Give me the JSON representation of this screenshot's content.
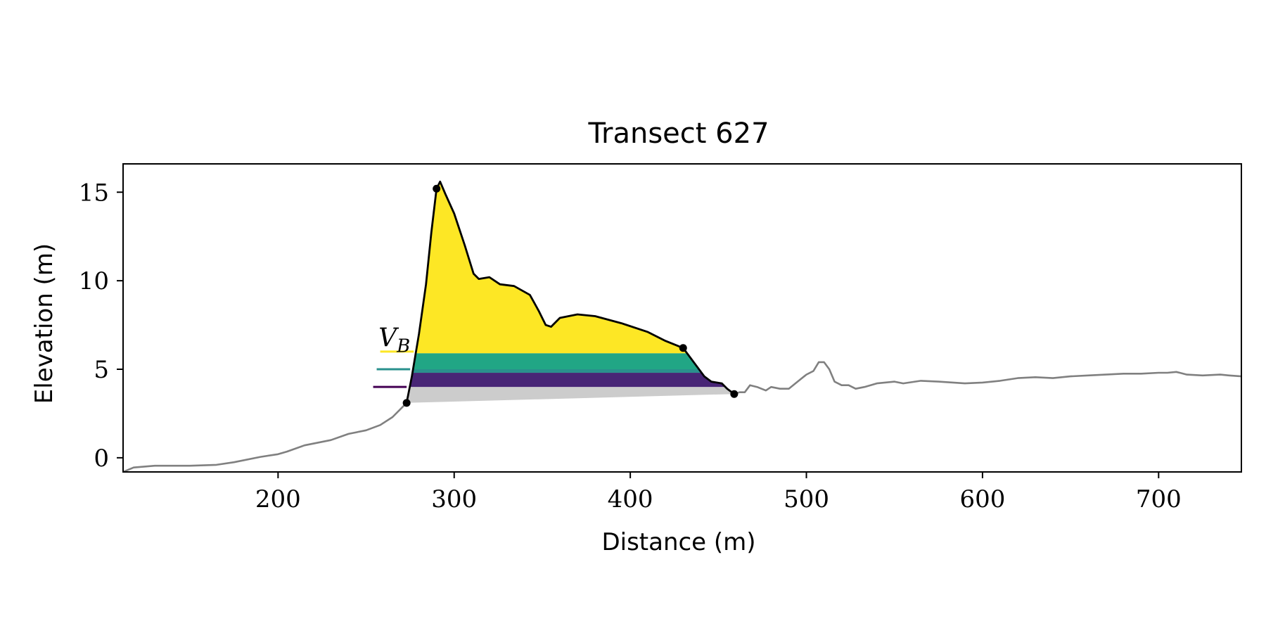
{
  "chart_data": {
    "type": "area",
    "title": "Transect 627",
    "xlabel": "Distance (m)",
    "ylabel": "Elevation (m)",
    "xlim": [
      112,
      747
    ],
    "ylim": [
      -0.8,
      16.6
    ],
    "xticks": [
      200,
      300,
      400,
      500,
      600,
      700
    ],
    "yticks": [
      0,
      5,
      10,
      15
    ],
    "xtick_labels": [
      "200",
      "300",
      "400",
      "500",
      "600",
      "700"
    ],
    "ytick_labels": [
      "0",
      "5",
      "10",
      "15"
    ],
    "grid": false,
    "annotation": {
      "text": "V",
      "subscript": "B",
      "x": 257,
      "y": 6.3
    },
    "colors": {
      "profile": "#808080",
      "dune_outline": "#000000",
      "layer_top": "#fde725",
      "layer_2": "#21a685",
      "layer_3": "#2a908d",
      "layer_4": "#482576",
      "base": "#cccccc"
    },
    "profile": [
      [
        112,
        -0.8
      ],
      [
        118,
        -0.55
      ],
      [
        130,
        -0.45
      ],
      [
        150,
        -0.45
      ],
      [
        165,
        -0.4
      ],
      [
        175,
        -0.25
      ],
      [
        190,
        0.05
      ],
      [
        200,
        0.2
      ],
      [
        205,
        0.35
      ],
      [
        215,
        0.7
      ],
      [
        230,
        1.0
      ],
      [
        240,
        1.35
      ],
      [
        250,
        1.55
      ],
      [
        258,
        1.85
      ],
      [
        265,
        2.3
      ],
      [
        270,
        2.8
      ],
      [
        273,
        3.1
      ]
    ],
    "dune_outline": [
      [
        273,
        3.1
      ],
      [
        276,
        4.6
      ],
      [
        280,
        7.0
      ],
      [
        284,
        9.8
      ],
      [
        287,
        12.7
      ],
      [
        290,
        15.2
      ],
      [
        292,
        15.6
      ],
      [
        295,
        14.9
      ],
      [
        300,
        13.8
      ],
      [
        306,
        12.0
      ],
      [
        311,
        10.4
      ],
      [
        314,
        10.1
      ],
      [
        320,
        10.2
      ],
      [
        326,
        9.8
      ],
      [
        334,
        9.7
      ],
      [
        343,
        9.2
      ],
      [
        348,
        8.3
      ],
      [
        352,
        7.5
      ],
      [
        355,
        7.4
      ],
      [
        360,
        7.9
      ],
      [
        370,
        8.1
      ],
      [
        380,
        8.0
      ],
      [
        395,
        7.6
      ],
      [
        410,
        7.1
      ],
      [
        420,
        6.6
      ],
      [
        430,
        6.2
      ],
      [
        436,
        5.4
      ],
      [
        442,
        4.6
      ],
      [
        446,
        4.3
      ],
      [
        452,
        4.2
      ],
      [
        455,
        3.9
      ],
      [
        459,
        3.6
      ]
    ],
    "profile_after": [
      [
        459,
        3.6
      ],
      [
        462,
        3.7
      ],
      [
        465,
        3.7
      ],
      [
        468,
        4.1
      ],
      [
        472,
        4.0
      ],
      [
        477,
        3.8
      ],
      [
        480,
        4.0
      ],
      [
        485,
        3.9
      ],
      [
        490,
        3.9
      ],
      [
        495,
        4.3
      ],
      [
        500,
        4.7
      ],
      [
        504,
        4.9
      ],
      [
        507,
        5.4
      ],
      [
        510,
        5.4
      ],
      [
        513,
        5.0
      ],
      [
        516,
        4.3
      ],
      [
        520,
        4.1
      ],
      [
        524,
        4.1
      ],
      [
        528,
        3.9
      ],
      [
        533,
        4.0
      ],
      [
        540,
        4.2
      ],
      [
        550,
        4.3
      ],
      [
        555,
        4.2
      ],
      [
        565,
        4.35
      ],
      [
        575,
        4.3
      ],
      [
        590,
        4.2
      ],
      [
        600,
        4.25
      ],
      [
        610,
        4.35
      ],
      [
        620,
        4.5
      ],
      [
        630,
        4.55
      ],
      [
        640,
        4.5
      ],
      [
        650,
        4.6
      ],
      [
        660,
        4.65
      ],
      [
        670,
        4.7
      ],
      [
        680,
        4.75
      ],
      [
        690,
        4.75
      ],
      [
        700,
        4.8
      ],
      [
        705,
        4.8
      ],
      [
        710,
        4.85
      ],
      [
        712,
        4.8
      ],
      [
        716,
        4.7
      ],
      [
        725,
        4.65
      ],
      [
        735,
        4.7
      ],
      [
        740,
        4.65
      ],
      [
        747,
        4.6
      ]
    ],
    "key_points": [
      {
        "x": 273,
        "y": 3.1
      },
      {
        "x": 290,
        "y": 15.2
      },
      {
        "x": 430,
        "y": 6.2
      },
      {
        "x": 459,
        "y": 3.6
      }
    ],
    "layers": [
      {
        "y_bottom": 5.9,
        "y_top": 20,
        "color": "#fde725"
      },
      {
        "y_bottom": 5.0,
        "y_top": 5.9,
        "color": "#21a685"
      },
      {
        "y_bottom": 4.8,
        "y_top": 5.0,
        "color": "#2a908d"
      },
      {
        "y_bottom": 4.0,
        "y_top": 4.8,
        "color": "#482576"
      }
    ],
    "base_wedge": {
      "start": {
        "x": 273,
        "y": 3.1
      },
      "end": {
        "x": 459,
        "y": 3.6
      },
      "top": 4.0
    },
    "level_markers": [
      {
        "x_start": 258,
        "x_end": 277,
        "y": 6.0,
        "color": "#fde725"
      },
      {
        "x_start": 256,
        "x_end": 275,
        "y": 5.0,
        "color": "#2a908d"
      },
      {
        "x_start": 254,
        "x_end": 273,
        "y": 4.0,
        "color": "#440154"
      }
    ]
  }
}
